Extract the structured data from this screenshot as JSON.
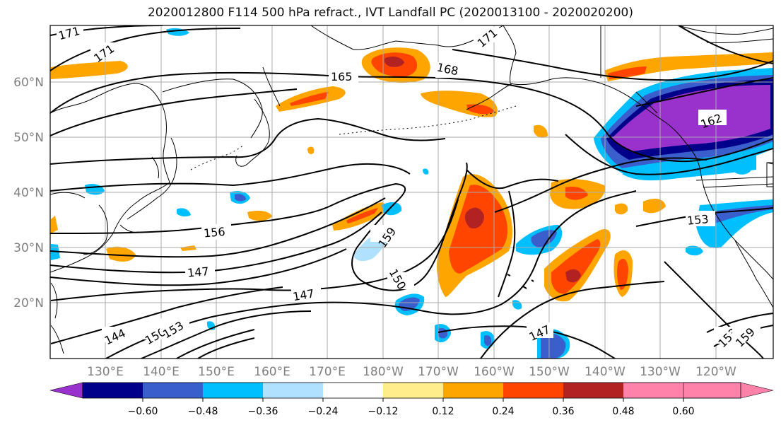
{
  "title": "2020012800 F114 500 hPa refract., IVT Landfall PC (2020013100 - 2020020200)",
  "lat_labels": [
    "60°N",
    "50°N",
    "40°N",
    "30°N",
    "20°N"
  ],
  "lon_labels": [
    "130°E",
    "140°E",
    "150°E",
    "160°E",
    "170°E",
    "180°W",
    "170°W",
    "160°W",
    "150°W",
    "140°W",
    "130°W",
    "120°W"
  ],
  "contour_labels": [
    "171",
    "171",
    "165",
    "168",
    "171",
    "162",
    "156",
    "147",
    "159",
    "150",
    "147",
    "144",
    "150",
    "153",
    "147",
    "153",
    "153",
    "159"
  ],
  "colorbar": {
    "ticks": [
      "−0.60",
      "−0.48",
      "−0.36",
      "−0.24",
      "−0.12",
      "0.12",
      "0.24",
      "0.36",
      "0.48",
      "0.60"
    ],
    "colors": [
      "#9932cc",
      "#00008b",
      "#3a5fcd",
      "#00bfff",
      "#b0e2ff",
      "#ffffff",
      "#ffec8b",
      "#ffa500",
      "#ff4500",
      "#b22222",
      "#ff82ab"
    ]
  }
}
